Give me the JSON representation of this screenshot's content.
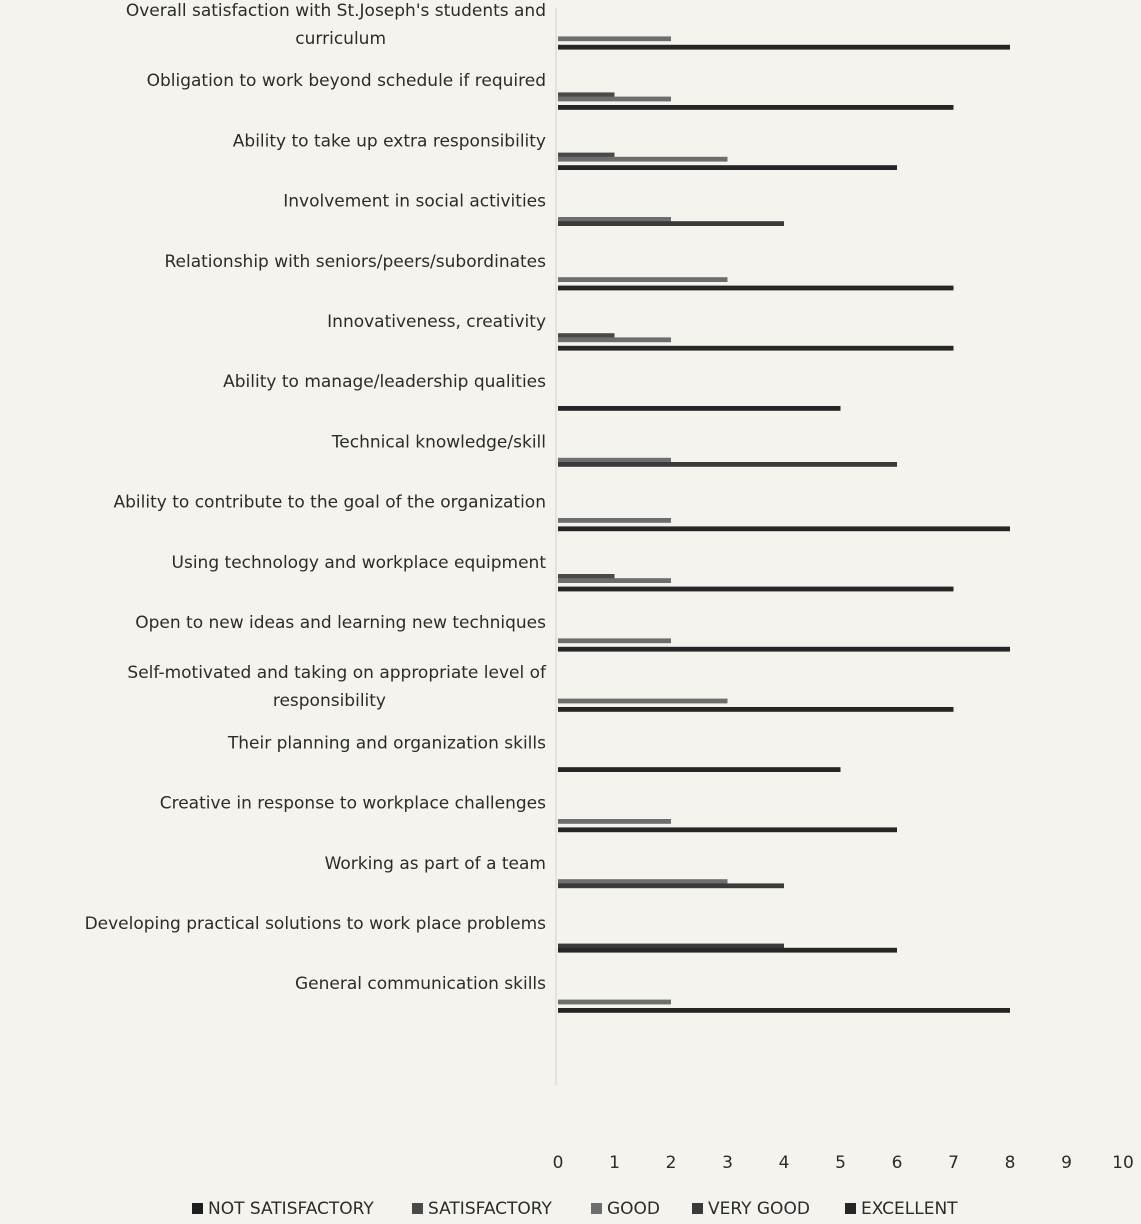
{
  "chart_data": {
    "type": "bar",
    "orientation": "horizontal",
    "categories": [
      "Overall satisfaction with St.Joseph's students and curriculum",
      "Obligation to work beyond schedule if required",
      "Ability to take up extra responsibility",
      "Involvement in social activities",
      "Relationship with seniors/peers/subordinates",
      "Innovativeness, creativity",
      "Ability to manage/leadership qualities",
      "Technical knowledge/skill",
      "Ability to contribute to the goal of the organization",
      "Using technology and workplace equipment",
      "Open to new ideas and learning new techniques",
      "Self-motivated and taking on appropriate level of responsibility",
      "Their planning and organization skills",
      "Creative in response to workplace challenges",
      "Working as part of a team",
      "Developing practical solutions to work place problems",
      "General communication skills"
    ],
    "series": [
      {
        "name": "NOT SATISFACTORY",
        "color": "#1e1e1e",
        "values": [
          0,
          0,
          0,
          0,
          0,
          0,
          0,
          0,
          0,
          0,
          0,
          0,
          0,
          0,
          0,
          0,
          0
        ]
      },
      {
        "name": "SATISFACTORY",
        "color": "#4a4a4a",
        "values": [
          0,
          1,
          1,
          0,
          0,
          1,
          0,
          0,
          0,
          1,
          0,
          0,
          0,
          0,
          0,
          0,
          0
        ]
      },
      {
        "name": "GOOD",
        "color": "#6e6e6e",
        "values": [
          2,
          2,
          3,
          2,
          3,
          2,
          0,
          2,
          2,
          2,
          2,
          3,
          0,
          2,
          3,
          0,
          2
        ]
      },
      {
        "name": "VERY GOOD",
        "color": "#3a3a3a",
        "values": [
          0,
          0,
          0,
          4,
          0,
          0,
          0,
          6,
          0,
          0,
          0,
          0,
          0,
          0,
          4,
          4,
          0
        ]
      },
      {
        "name": "EXCELLENT",
        "color": "#262626",
        "values": [
          8,
          7,
          6,
          0,
          7,
          7,
          5,
          0,
          8,
          7,
          8,
          7,
          5,
          6,
          0,
          6,
          8
        ]
      }
    ],
    "xlim": [
      0,
      10
    ],
    "x_ticks": [
      "0",
      "1",
      "2",
      "3",
      "4",
      "5",
      "6",
      "7",
      "8",
      "9",
      "10"
    ],
    "legend_position": "bottom",
    "grid": false
  }
}
